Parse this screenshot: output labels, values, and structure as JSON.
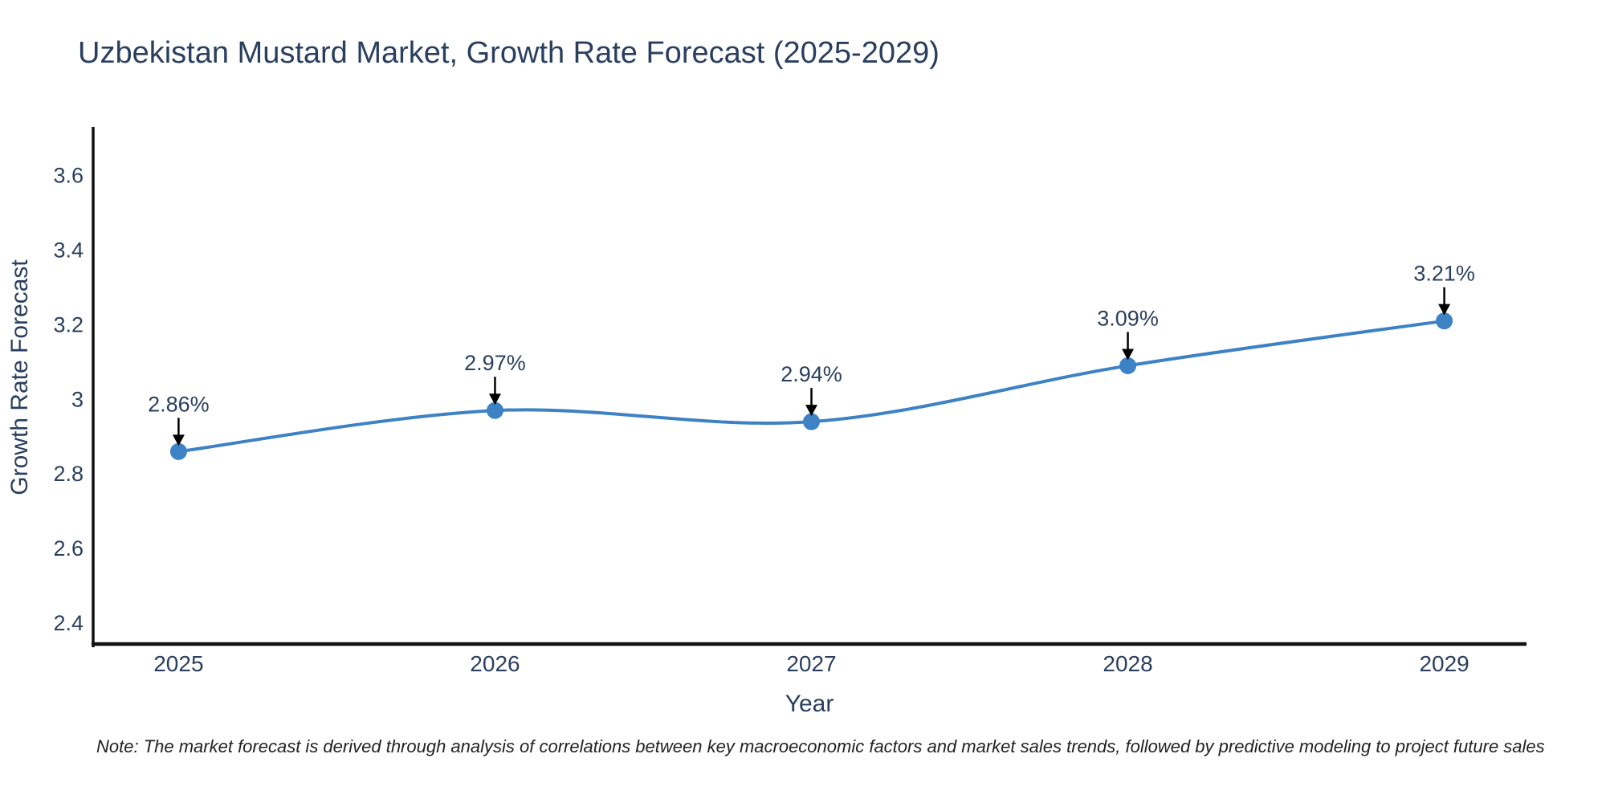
{
  "chart_data": {
    "type": "line",
    "title": "Uzbekistan Mustard Market, Growth Rate Forecast (2025-2029)",
    "xlabel": "Year",
    "ylabel": "Growth Rate Forecast",
    "x": [
      2025,
      2026,
      2027,
      2028,
      2029
    ],
    "series": [
      {
        "name": "Growth Rate Forecast",
        "values": [
          2.86,
          2.97,
          2.94,
          3.09,
          3.21
        ],
        "point_labels": [
          "2.86%",
          "2.97%",
          "2.94%",
          "3.09%",
          "3.21%"
        ],
        "color": "#3d82c4",
        "line_shape": "spline",
        "marker": "circle"
      }
    ],
    "x_tick_labels": [
      "2025",
      "2026",
      "2027",
      "2028",
      "2029"
    ],
    "y_tick_values": [
      2.4,
      2.6,
      2.8,
      3.0,
      3.2,
      3.4,
      3.6
    ],
    "y_tick_labels": [
      "2.4",
      "2.6",
      "2.8",
      "3",
      "3.2",
      "3.4",
      "3.6"
    ],
    "xlim": [
      2024.73,
      2029.27
    ],
    "ylim": [
      2.34,
      3.73
    ],
    "grid": false,
    "legend_position": "none",
    "annotations": "arrow-labels-above-points"
  },
  "footnote": "Note: The market forecast is derived through analysis of correlations between key macroeconomic factors and market sales trends, followed by predictive modeling to project future sales",
  "colors": {
    "title_text": "#2a3f5f",
    "axis_text": "#2a3f5f",
    "axis_line": "#111111",
    "series_line": "#3d82c4",
    "marker_fill": "#3d82c4",
    "annotation_text": "#2a3f5f",
    "annotation_arrow": "#000000",
    "background": "#ffffff",
    "note_text": "#222222"
  }
}
